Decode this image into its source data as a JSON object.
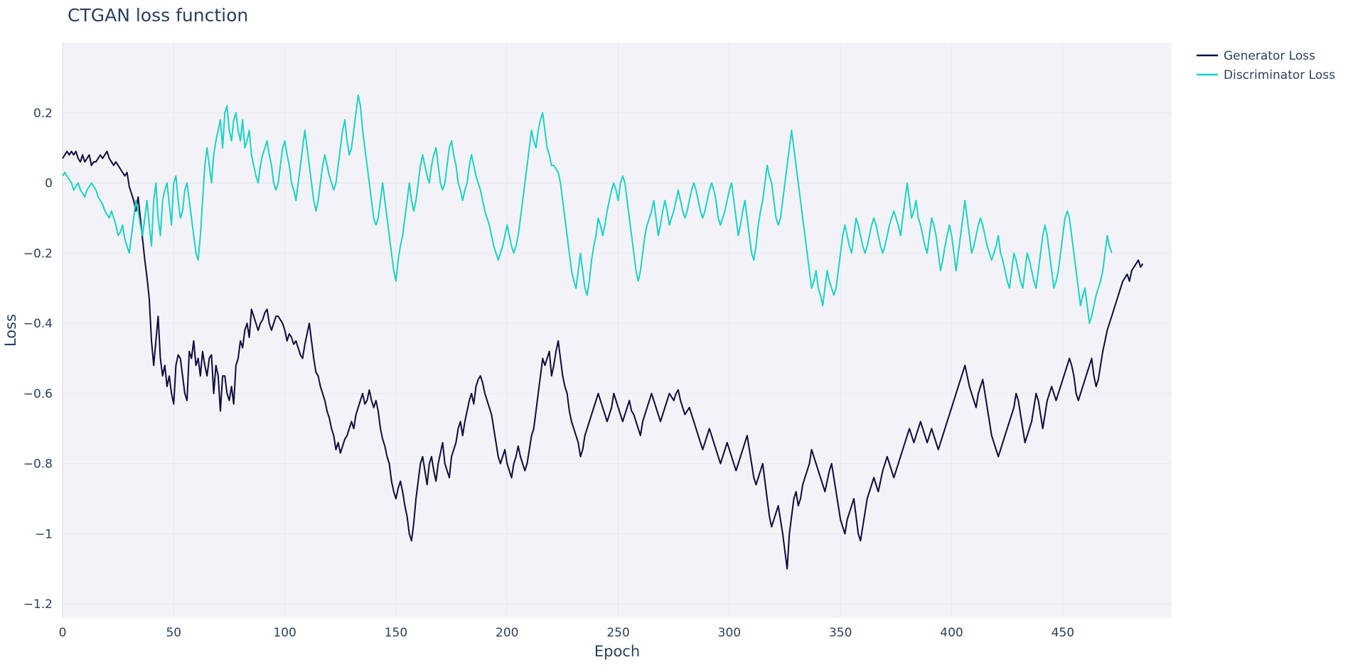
{
  "chart_data": {
    "type": "line",
    "title": "CTGAN loss function",
    "xlabel": "Epoch",
    "ylabel": "Loss",
    "xlim": [
      0,
      499
    ],
    "ylim": [
      -1.24,
      0.4
    ],
    "xticks": [
      0,
      50,
      100,
      150,
      200,
      250,
      300,
      350,
      400,
      450
    ],
    "yticks": [
      -1.2,
      -1,
      -0.8,
      -0.6,
      -0.4,
      -0.2,
      0,
      0.2
    ],
    "ytick_labels": [
      "−1.2",
      "−1",
      "−0.8",
      "−0.6",
      "−0.4",
      "−0.2",
      "0",
      "0.2"
    ],
    "grid": true,
    "legend_position": "top-right, outside plot",
    "background": "#f3f3f7",
    "x_step": 1,
    "series": [
      {
        "name": "Generator Loss",
        "color": "#0d0a3f",
        "values": [
          0.07,
          0.08,
          0.09,
          0.08,
          0.09,
          0.08,
          0.09,
          0.07,
          0.06,
          0.08,
          0.06,
          0.07,
          0.08,
          0.05,
          0.06,
          0.06,
          0.07,
          0.08,
          0.07,
          0.08,
          0.09,
          0.07,
          0.06,
          0.05,
          0.06,
          0.05,
          0.04,
          0.03,
          0.02,
          0.03,
          -0.01,
          -0.03,
          -0.05,
          -0.08,
          -0.04,
          -0.1,
          -0.16,
          -0.22,
          -0.27,
          -0.33,
          -0.45,
          -0.52,
          -0.45,
          -0.38,
          -0.5,
          -0.55,
          -0.52,
          -0.58,
          -0.55,
          -0.6,
          -0.63,
          -0.52,
          -0.49,
          -0.5,
          -0.55,
          -0.6,
          -0.62,
          -0.48,
          -0.5,
          -0.45,
          -0.52,
          -0.5,
          -0.55,
          -0.48,
          -0.52,
          -0.55,
          -0.5,
          -0.49,
          -0.6,
          -0.52,
          -0.55,
          -0.65,
          -0.55,
          -0.55,
          -0.6,
          -0.62,
          -0.58,
          -0.63,
          -0.52,
          -0.5,
          -0.45,
          -0.47,
          -0.42,
          -0.4,
          -0.44,
          -0.36,
          -0.38,
          -0.4,
          -0.42,
          -0.4,
          -0.39,
          -0.37,
          -0.36,
          -0.4,
          -0.42,
          -0.4,
          -0.38,
          -0.38,
          -0.39,
          -0.4,
          -0.42,
          -0.45,
          -0.43,
          -0.44,
          -0.46,
          -0.45,
          -0.47,
          -0.49,
          -0.5,
          -0.46,
          -0.43,
          -0.4,
          -0.45,
          -0.5,
          -0.54,
          -0.55,
          -0.58,
          -0.6,
          -0.62,
          -0.65,
          -0.67,
          -0.7,
          -0.72,
          -0.76,
          -0.74,
          -0.77,
          -0.75,
          -0.73,
          -0.72,
          -0.7,
          -0.68,
          -0.7,
          -0.66,
          -0.64,
          -0.62,
          -0.6,
          -0.63,
          -0.62,
          -0.59,
          -0.62,
          -0.64,
          -0.62,
          -0.65,
          -0.7,
          -0.73,
          -0.75,
          -0.78,
          -0.8,
          -0.85,
          -0.88,
          -0.9,
          -0.87,
          -0.85,
          -0.88,
          -0.92,
          -0.95,
          -1.0,
          -1.02,
          -0.97,
          -0.9,
          -0.85,
          -0.8,
          -0.78,
          -0.82,
          -0.86,
          -0.8,
          -0.78,
          -0.82,
          -0.85,
          -0.8,
          -0.77,
          -0.74,
          -0.8,
          -0.82,
          -0.84,
          -0.78,
          -0.76,
          -0.74,
          -0.7,
          -0.68,
          -0.72,
          -0.68,
          -0.65,
          -0.62,
          -0.6,
          -0.63,
          -0.58,
          -0.56,
          -0.55,
          -0.57,
          -0.6,
          -0.62,
          -0.64,
          -0.66,
          -0.7,
          -0.74,
          -0.78,
          -0.8,
          -0.78,
          -0.76,
          -0.8,
          -0.82,
          -0.84,
          -0.8,
          -0.78,
          -0.75,
          -0.78,
          -0.8,
          -0.82,
          -0.8,
          -0.76,
          -0.72,
          -0.7,
          -0.65,
          -0.6,
          -0.55,
          -0.5,
          -0.52,
          -0.5,
          -0.48,
          -0.55,
          -0.52,
          -0.48,
          -0.45,
          -0.5,
          -0.55,
          -0.58,
          -0.6,
          -0.65,
          -0.68,
          -0.7,
          -0.72,
          -0.74,
          -0.78,
          -0.76,
          -0.72,
          -0.7,
          -0.68,
          -0.66,
          -0.64,
          -0.62,
          -0.6,
          -0.62,
          -0.64,
          -0.66,
          -0.68,
          -0.66,
          -0.64,
          -0.6,
          -0.62,
          -0.64,
          -0.66,
          -0.68,
          -0.66,
          -0.64,
          -0.62,
          -0.65,
          -0.66,
          -0.68,
          -0.7,
          -0.72,
          -0.68,
          -0.66,
          -0.64,
          -0.62,
          -0.6,
          -0.62,
          -0.64,
          -0.66,
          -0.68,
          -0.66,
          -0.64,
          -0.62,
          -0.6,
          -0.61,
          -0.62,
          -0.6,
          -0.59,
          -0.62,
          -0.64,
          -0.66,
          -0.65,
          -0.64,
          -0.66,
          -0.68,
          -0.7,
          -0.72,
          -0.74,
          -0.76,
          -0.74,
          -0.72,
          -0.7,
          -0.72,
          -0.74,
          -0.76,
          -0.78,
          -0.8,
          -0.78,
          -0.76,
          -0.74,
          -0.76,
          -0.78,
          -0.8,
          -0.82,
          -0.8,
          -0.78,
          -0.76,
          -0.74,
          -0.72,
          -0.76,
          -0.8,
          -0.84,
          -0.86,
          -0.84,
          -0.82,
          -0.8,
          -0.85,
          -0.9,
          -0.95,
          -0.98,
          -0.96,
          -0.94,
          -0.92,
          -0.96,
          -1.0,
          -1.05,
          -1.1,
          -1.0,
          -0.95,
          -0.9,
          -0.88,
          -0.92,
          -0.9,
          -0.86,
          -0.84,
          -0.82,
          -0.8,
          -0.76,
          -0.78,
          -0.8,
          -0.82,
          -0.84,
          -0.86,
          -0.88,
          -0.85,
          -0.82,
          -0.8,
          -0.84,
          -0.88,
          -0.92,
          -0.96,
          -0.98,
          -1.0,
          -0.96,
          -0.94,
          -0.92,
          -0.9,
          -0.95,
          -1.0,
          -1.02,
          -0.98,
          -0.94,
          -0.9,
          -0.88,
          -0.86,
          -0.84,
          -0.86,
          -0.88,
          -0.85,
          -0.82,
          -0.8,
          -0.78,
          -0.8,
          -0.82,
          -0.84,
          -0.82,
          -0.8,
          -0.78,
          -0.76,
          -0.74,
          -0.72,
          -0.7,
          -0.72,
          -0.74,
          -0.72,
          -0.7,
          -0.68,
          -0.7,
          -0.72,
          -0.74,
          -0.72,
          -0.7,
          -0.72,
          -0.74,
          -0.76,
          -0.74,
          -0.72,
          -0.7,
          -0.68,
          -0.66,
          -0.64,
          -0.62,
          -0.6,
          -0.58,
          -0.56,
          -0.54,
          -0.52,
          -0.55,
          -0.58,
          -0.6,
          -0.62,
          -0.64,
          -0.6,
          -0.58,
          -0.56,
          -0.6,
          -0.64,
          -0.68,
          -0.72,
          -0.74,
          -0.76,
          -0.78,
          -0.76,
          -0.74,
          -0.72,
          -0.7,
          -0.68,
          -0.66,
          -0.64,
          -0.6,
          -0.62,
          -0.66,
          -0.7,
          -0.74,
          -0.72,
          -0.7,
          -0.68,
          -0.64,
          -0.6,
          -0.62,
          -0.66,
          -0.7,
          -0.66,
          -0.62,
          -0.6,
          -0.58,
          -0.6,
          -0.62,
          -0.6,
          -0.58,
          -0.56,
          -0.54,
          -0.52,
          -0.5,
          -0.52,
          -0.55,
          -0.6,
          -0.62,
          -0.6,
          -0.58,
          -0.56,
          -0.54,
          -0.52,
          -0.5,
          -0.55,
          -0.58,
          -0.56,
          -0.52,
          -0.48,
          -0.45,
          -0.42,
          -0.4,
          -0.38,
          -0.36,
          -0.34,
          -0.32,
          -0.3,
          -0.28,
          -0.27,
          -0.26,
          -0.28,
          -0.25,
          -0.24,
          -0.23,
          -0.22,
          -0.24,
          -0.23
        ]
      },
      {
        "name": "Discriminator Loss",
        "color": "#19d3c5",
        "values": [
          0.02,
          0.03,
          0.02,
          0.01,
          0.0,
          -0.02,
          -0.01,
          0.0,
          -0.02,
          -0.03,
          -0.04,
          -0.02,
          -0.01,
          0.0,
          -0.01,
          -0.02,
          -0.04,
          -0.05,
          -0.06,
          -0.08,
          -0.09,
          -0.1,
          -0.08,
          -0.1,
          -0.12,
          -0.15,
          -0.14,
          -0.12,
          -0.16,
          -0.18,
          -0.2,
          -0.15,
          -0.1,
          -0.05,
          -0.08,
          -0.12,
          -0.15,
          -0.1,
          -0.05,
          -0.12,
          -0.18,
          -0.05,
          0.0,
          -0.1,
          -0.15,
          -0.05,
          -0.02,
          0.0,
          -0.06,
          -0.12,
          0.0,
          0.02,
          -0.05,
          -0.1,
          -0.08,
          -0.02,
          0.0,
          -0.05,
          -0.1,
          -0.15,
          -0.2,
          -0.22,
          -0.15,
          -0.05,
          0.05,
          0.1,
          0.05,
          0.0,
          0.08,
          0.12,
          0.15,
          0.18,
          0.1,
          0.2,
          0.22,
          0.15,
          0.12,
          0.18,
          0.2,
          0.15,
          0.12,
          0.18,
          0.1,
          0.12,
          0.15,
          0.08,
          0.05,
          0.02,
          0.0,
          0.05,
          0.08,
          0.1,
          0.12,
          0.08,
          0.05,
          0.0,
          -0.02,
          0.0,
          0.05,
          0.1,
          0.12,
          0.08,
          0.05,
          0.0,
          -0.02,
          -0.05,
          0.0,
          0.05,
          0.1,
          0.15,
          0.1,
          0.05,
          0.0,
          -0.05,
          -0.08,
          -0.05,
          0.0,
          0.05,
          0.08,
          0.05,
          0.02,
          0.0,
          -0.02,
          0.0,
          0.05,
          0.1,
          0.15,
          0.18,
          0.12,
          0.08,
          0.1,
          0.15,
          0.2,
          0.25,
          0.22,
          0.15,
          0.1,
          0.05,
          0.0,
          -0.05,
          -0.1,
          -0.12,
          -0.1,
          -0.05,
          0.0,
          -0.05,
          -0.1,
          -0.15,
          -0.2,
          -0.25,
          -0.28,
          -0.22,
          -0.18,
          -0.15,
          -0.1,
          -0.05,
          0.0,
          -0.05,
          -0.08,
          -0.05,
          0.0,
          0.05,
          0.08,
          0.05,
          0.02,
          0.0,
          0.05,
          0.08,
          0.1,
          0.05,
          0.0,
          -0.02,
          0.0,
          0.05,
          0.1,
          0.12,
          0.08,
          0.05,
          0.0,
          -0.02,
          -0.05,
          -0.02,
          0.0,
          0.05,
          0.08,
          0.05,
          0.02,
          0.0,
          -0.02,
          -0.05,
          -0.08,
          -0.1,
          -0.12,
          -0.15,
          -0.18,
          -0.2,
          -0.22,
          -0.2,
          -0.18,
          -0.15,
          -0.12,
          -0.15,
          -0.18,
          -0.2,
          -0.18,
          -0.15,
          -0.1,
          -0.05,
          0.0,
          0.05,
          0.1,
          0.15,
          0.12,
          0.1,
          0.15,
          0.18,
          0.2,
          0.15,
          0.1,
          0.08,
          0.05,
          0.05,
          0.04,
          0.03,
          0.0,
          -0.05,
          -0.1,
          -0.15,
          -0.2,
          -0.25,
          -0.28,
          -0.3,
          -0.25,
          -0.2,
          -0.25,
          -0.3,
          -0.32,
          -0.28,
          -0.22,
          -0.18,
          -0.15,
          -0.1,
          -0.12,
          -0.15,
          -0.12,
          -0.08,
          -0.05,
          -0.02,
          0.0,
          -0.02,
          -0.05,
          0.0,
          0.02,
          0.0,
          -0.05,
          -0.1,
          -0.15,
          -0.2,
          -0.25,
          -0.28,
          -0.25,
          -0.2,
          -0.15,
          -0.12,
          -0.1,
          -0.08,
          -0.05,
          -0.1,
          -0.15,
          -0.12,
          -0.08,
          -0.05,
          -0.08,
          -0.12,
          -0.1,
          -0.08,
          -0.05,
          -0.02,
          -0.05,
          -0.08,
          -0.1,
          -0.08,
          -0.05,
          -0.02,
          0.0,
          -0.02,
          -0.05,
          -0.08,
          -0.1,
          -0.08,
          -0.05,
          -0.02,
          0.0,
          -0.02,
          -0.05,
          -0.1,
          -0.12,
          -0.1,
          -0.08,
          -0.05,
          -0.02,
          0.0,
          -0.05,
          -0.1,
          -0.15,
          -0.12,
          -0.08,
          -0.05,
          -0.1,
          -0.15,
          -0.2,
          -0.22,
          -0.18,
          -0.12,
          -0.08,
          -0.05,
          0.0,
          0.05,
          0.02,
          0.0,
          -0.05,
          -0.1,
          -0.12,
          -0.1,
          -0.05,
          0.0,
          0.05,
          0.1,
          0.15,
          0.1,
          0.05,
          0.0,
          -0.05,
          -0.1,
          -0.15,
          -0.2,
          -0.25,
          -0.3,
          -0.28,
          -0.25,
          -0.3,
          -0.32,
          -0.35,
          -0.3,
          -0.25,
          -0.28,
          -0.3,
          -0.32,
          -0.3,
          -0.25,
          -0.2,
          -0.15,
          -0.12,
          -0.15,
          -0.18,
          -0.2,
          -0.15,
          -0.1,
          -0.12,
          -0.15,
          -0.18,
          -0.2,
          -0.18,
          -0.15,
          -0.12,
          -0.1,
          -0.12,
          -0.15,
          -0.18,
          -0.2,
          -0.18,
          -0.15,
          -0.12,
          -0.1,
          -0.08,
          -0.1,
          -0.12,
          -0.15,
          -0.1,
          -0.05,
          0.0,
          -0.05,
          -0.1,
          -0.08,
          -0.05,
          -0.1,
          -0.12,
          -0.15,
          -0.18,
          -0.2,
          -0.15,
          -0.1,
          -0.12,
          -0.15,
          -0.2,
          -0.25,
          -0.22,
          -0.18,
          -0.15,
          -0.12,
          -0.15,
          -0.2,
          -0.25,
          -0.2,
          -0.15,
          -0.1,
          -0.05,
          -0.1,
          -0.15,
          -0.2,
          -0.18,
          -0.15,
          -0.12,
          -0.1,
          -0.12,
          -0.15,
          -0.18,
          -0.2,
          -0.22,
          -0.2,
          -0.18,
          -0.15,
          -0.2,
          -0.22,
          -0.25,
          -0.28,
          -0.3,
          -0.25,
          -0.2,
          -0.22,
          -0.25,
          -0.28,
          -0.3,
          -0.25,
          -0.2,
          -0.22,
          -0.25,
          -0.28,
          -0.3,
          -0.25,
          -0.2,
          -0.15,
          -0.12,
          -0.15,
          -0.2,
          -0.25,
          -0.3,
          -0.28,
          -0.25,
          -0.2,
          -0.15,
          -0.1,
          -0.08,
          -0.1,
          -0.15,
          -0.2,
          -0.25,
          -0.3,
          -0.35,
          -0.32,
          -0.3,
          -0.35,
          -0.4,
          -0.38,
          -0.35,
          -0.32,
          -0.3,
          -0.28,
          -0.25,
          -0.2,
          -0.15,
          -0.18,
          -0.2
        ]
      }
    ]
  }
}
